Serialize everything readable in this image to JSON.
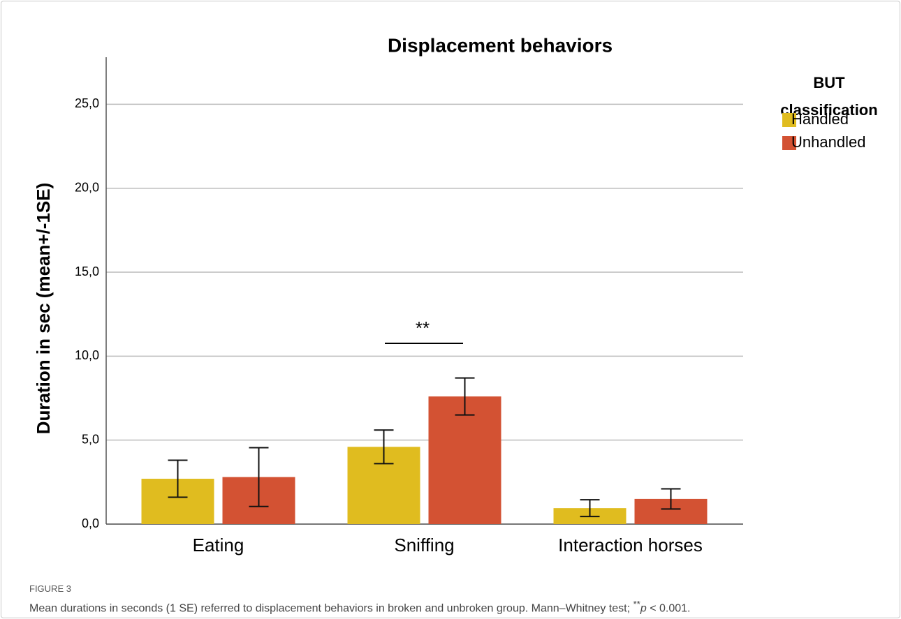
{
  "chart_data": {
    "type": "bar",
    "title": "Displacement behaviors",
    "ylabel": "Duration in sec (mean+/-1SE)",
    "categories": [
      "Eating",
      "Sniffing",
      "Interaction horses"
    ],
    "series": [
      {
        "name": "Handled",
        "color": "#e0bc1f",
        "values": [
          2.7,
          4.6,
          0.95
        ],
        "errors": [
          1.1,
          1.0,
          0.5
        ]
      },
      {
        "name": "Unhandled",
        "color": "#d35233",
        "values": [
          2.8,
          7.6,
          1.5
        ],
        "errors": [
          1.75,
          1.1,
          0.6
        ]
      }
    ],
    "ylim": [
      0,
      27.8
    ],
    "yticks": [
      {
        "value": 0,
        "label": "0,0"
      },
      {
        "value": 5,
        "label": "5,0"
      },
      {
        "value": 10,
        "label": "10,0"
      },
      {
        "value": 15,
        "label": "15,0"
      },
      {
        "value": 20,
        "label": "20,0"
      },
      {
        "value": 25,
        "label": "25,0"
      }
    ],
    "grid": true,
    "legend_title": [
      "BUT",
      "classification"
    ],
    "legend": "upper right",
    "annotations": [
      {
        "text": "**"
      }
    ]
  },
  "figure": {
    "label": "FIGURE 3",
    "caption": "Mean durations in seconds (1 SE) referred to displacement behaviors in broken and unbroken group. Mann–Whitney test; ",
    "caption_sup": "**",
    "caption_p": "p",
    "caption_end": " < 0.001."
  }
}
